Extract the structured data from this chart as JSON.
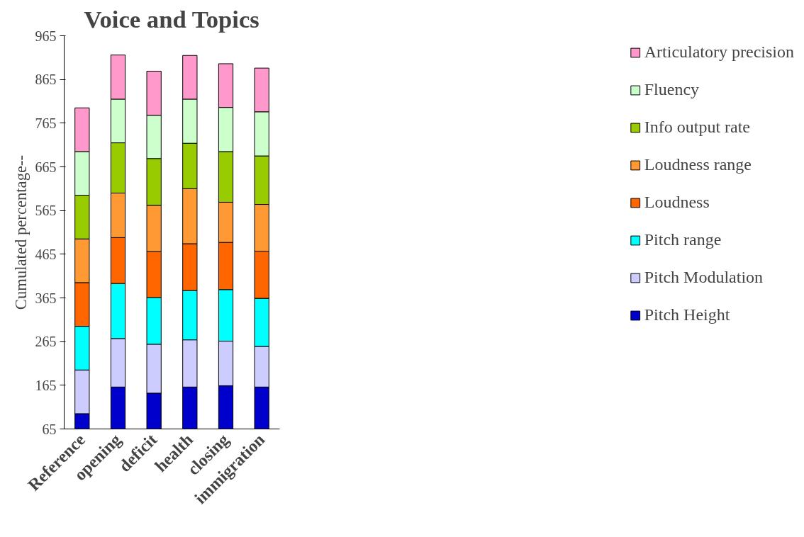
{
  "chart_data": {
    "type": "bar",
    "stacked": true,
    "title": "Voice and Topics",
    "ylabel": "Cumulated percentage--",
    "categories": [
      "Reference",
      "opening",
      "deficit",
      "health",
      "closing",
      "immigration"
    ],
    "series": [
      {
        "name": "Pitch Height",
        "color": "#0000cc",
        "values": [
          100,
          161,
          147,
          161,
          164,
          161
        ]
      },
      {
        "name": "Pitch Modulation",
        "color": "#ccccff",
        "values": [
          100,
          111,
          112,
          108,
          102,
          93
        ]
      },
      {
        "name": "Pitch range",
        "color": "#00ffff",
        "values": [
          100,
          126,
          107,
          113,
          118,
          110
        ]
      },
      {
        "name": "Loudness",
        "color": "#ff6600",
        "values": [
          100,
          105,
          105,
          107,
          108,
          108
        ]
      },
      {
        "name": "Loudness range",
        "color": "#ff9933",
        "values": [
          100,
          102,
          106,
          126,
          92,
          107
        ]
      },
      {
        "name": "Info output rate",
        "color": "#99cc00",
        "values": [
          100,
          115,
          107,
          104,
          116,
          111
        ]
      },
      {
        "name": "Fluency",
        "color": "#ccffcc",
        "values": [
          100,
          100,
          99,
          101,
          101,
          101
        ]
      },
      {
        "name": "Articulatory precision",
        "color": "#ff99cc",
        "values": [
          100,
          101,
          101,
          100,
          100,
          100
        ]
      }
    ],
    "ylim": [
      65,
      965
    ],
    "yticks": [
      65,
      165,
      265,
      365,
      465,
      565,
      665,
      765,
      865,
      965
    ],
    "legend": "right",
    "grid": false
  }
}
